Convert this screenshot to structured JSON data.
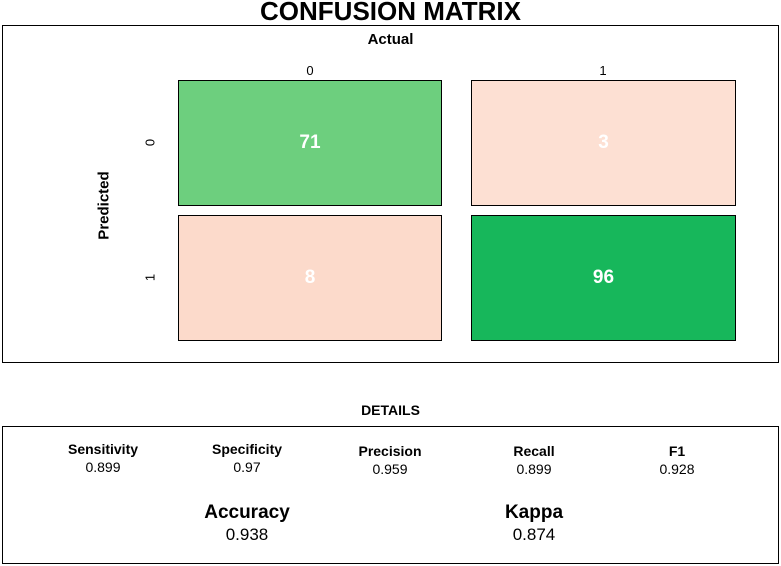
{
  "chart_data": {
    "type": "heatmap",
    "title": "CONFUSION MATRIX",
    "xlabel": "Actual",
    "ylabel": "Predicted",
    "x_categories": [
      "0",
      "1"
    ],
    "y_categories": [
      "0",
      "1"
    ],
    "cells": [
      {
        "predicted": "0",
        "actual": "0",
        "value": 71,
        "color": "#6dcf7e"
      },
      {
        "predicted": "0",
        "actual": "1",
        "value": 3,
        "color": "#fde0d3"
      },
      {
        "predicted": "1",
        "actual": "0",
        "value": 8,
        "color": "#fcdacb"
      },
      {
        "predicted": "1",
        "actual": "1",
        "value": 96,
        "color": "#17b75b"
      }
    ]
  },
  "details": {
    "title": "DETAILS",
    "metrics": [
      {
        "name": "Sensitivity",
        "value": "0.899"
      },
      {
        "name": "Specificity",
        "value": "0.97"
      },
      {
        "name": "Precision",
        "value": "0.959"
      },
      {
        "name": "Recall",
        "value": "0.899"
      },
      {
        "name": "F1",
        "value": "0.928"
      }
    ],
    "accuracy": {
      "name": "Accuracy",
      "value": "0.938"
    },
    "kappa": {
      "name": "Kappa",
      "value": "0.874"
    }
  }
}
